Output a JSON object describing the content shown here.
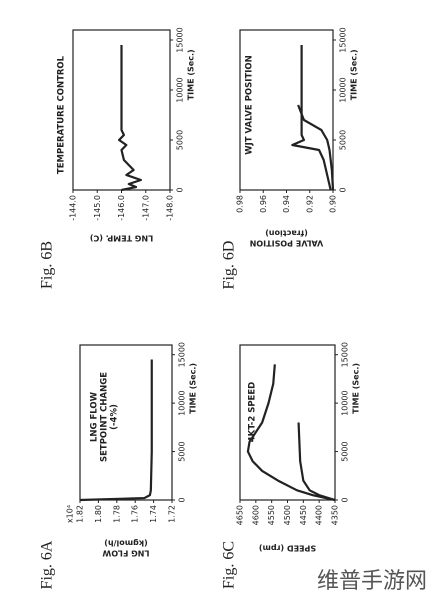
{
  "watermark": "维普手游网",
  "chart_data": [
    {
      "type": "line",
      "fig_label": "Fig. 6A",
      "title": [
        "LNG FLOW",
        "SETPOINT CHANGE",
        "(-4%)"
      ],
      "multiplier": "x10⁴",
      "ylabel": [
        "LNG FLOW",
        "(kgmol/h)"
      ],
      "xlabel": "TIME (Sec.)",
      "xlim": [
        0,
        16000
      ],
      "ylim": [
        1.72,
        1.82
      ],
      "xticks": [
        0,
        5000,
        10000,
        15000
      ],
      "yticks": [
        1.82,
        {
          "value": 1.8,
          "label": "1.80"
        },
        1.78,
        1.76,
        1.74,
        1.72
      ],
      "series": [
        {
          "color": "#222222",
          "x": [
            0,
            200,
            500,
            1000,
            5000,
            10000,
            14500
          ],
          "values": [
            1.82,
            1.75,
            1.744,
            1.743,
            1.742,
            1.742,
            1.742
          ]
        }
      ]
    },
    {
      "type": "line",
      "fig_label": "Fig. 6B",
      "title": [
        "TEMPERATURE CONTROL"
      ],
      "ylabel": [
        "LNG TEMP. (C)"
      ],
      "xlabel": "TIME (Sec.)",
      "xlim": [
        0,
        16000
      ],
      "ylim": [
        -148,
        -144
      ],
      "xticks": [
        0,
        5000,
        10000,
        15000
      ],
      "yticks": [
        {
          "value": -144,
          "label": "-144.0"
        },
        {
          "value": -145,
          "label": "-145.0"
        },
        {
          "value": -146,
          "label": "-146.0"
        },
        {
          "value": -147,
          "label": "-147.0"
        },
        {
          "value": -148,
          "label": "-148.0"
        }
      ],
      "series": [
        {
          "color": "#222222",
          "x": [
            0,
            300,
            600,
            1000,
            1500,
            2000,
            3000,
            4000,
            4500,
            5000,
            5500,
            6000,
            10000,
            14500
          ],
          "values": [
            -146.0,
            -146.6,
            -146.3,
            -146.8,
            -146.2,
            -146.5,
            -146.1,
            -146.0,
            -146.2,
            -145.9,
            -146.1,
            -146.0,
            -146.0,
            -146.0
          ]
        }
      ]
    },
    {
      "type": "line",
      "fig_label": "Fig. 6C",
      "title": [
        "4KT-2 SPEED"
      ],
      "ylabel": [
        "SPEED (rpm)"
      ],
      "xlabel": "TIME (Sec.)",
      "xlim": [
        0,
        16000
      ],
      "ylim": [
        4350,
        4650
      ],
      "xticks": [
        0,
        5000,
        10000,
        15000
      ],
      "yticks": [
        4650,
        4600,
        4550,
        4500,
        4450,
        4400,
        4350
      ],
      "series": [
        {
          "color": "#222222",
          "x": [
            0,
            500,
            1000,
            2000,
            3000,
            4000,
            5000,
            6000,
            7000,
            8000,
            10000,
            12000,
            14000
          ],
          "values": [
            4350,
            4420,
            4470,
            4530,
            4580,
            4610,
            4625,
            4620,
            4600,
            4580,
            4560,
            4545,
            4540
          ]
        },
        {
          "color": "#222222",
          "x": [
            0,
            500,
            1000,
            2000,
            4000,
            8000
          ],
          "values": [
            4350,
            4400,
            4430,
            4450,
            4460,
            4465
          ]
        }
      ]
    },
    {
      "type": "line",
      "fig_label": "Fig. 6D",
      "title": [
        "WJT VALVE POSITION"
      ],
      "ylabel": [
        "VALVE POSITION",
        "(fraction)"
      ],
      "xlabel": "TIME (Sec.)",
      "xlim": [
        0,
        16000
      ],
      "ylim": [
        0.9,
        0.98
      ],
      "xticks": [
        0,
        5000,
        10000,
        15000
      ],
      "yticks": [
        0.98,
        0.96,
        0.94,
        0.92,
        {
          "value": 0.9,
          "label": "0.90"
        }
      ],
      "series": [
        {
          "color": "#222222",
          "x": [
            0,
            1000,
            2000,
            3000,
            4000,
            4500,
            5000,
            5500,
            6000,
            7000,
            10000,
            14500
          ],
          "values": [
            0.902,
            0.904,
            0.906,
            0.908,
            0.912,
            0.935,
            0.925,
            0.927,
            0.927,
            0.927,
            0.927,
            0.927
          ]
        },
        {
          "color": "#222222",
          "x": [
            0,
            2000,
            4000,
            5000,
            6000,
            7000,
            8500
          ],
          "values": [
            0.9,
            0.901,
            0.903,
            0.905,
            0.91,
            0.925,
            0.93
          ]
        }
      ]
    }
  ]
}
